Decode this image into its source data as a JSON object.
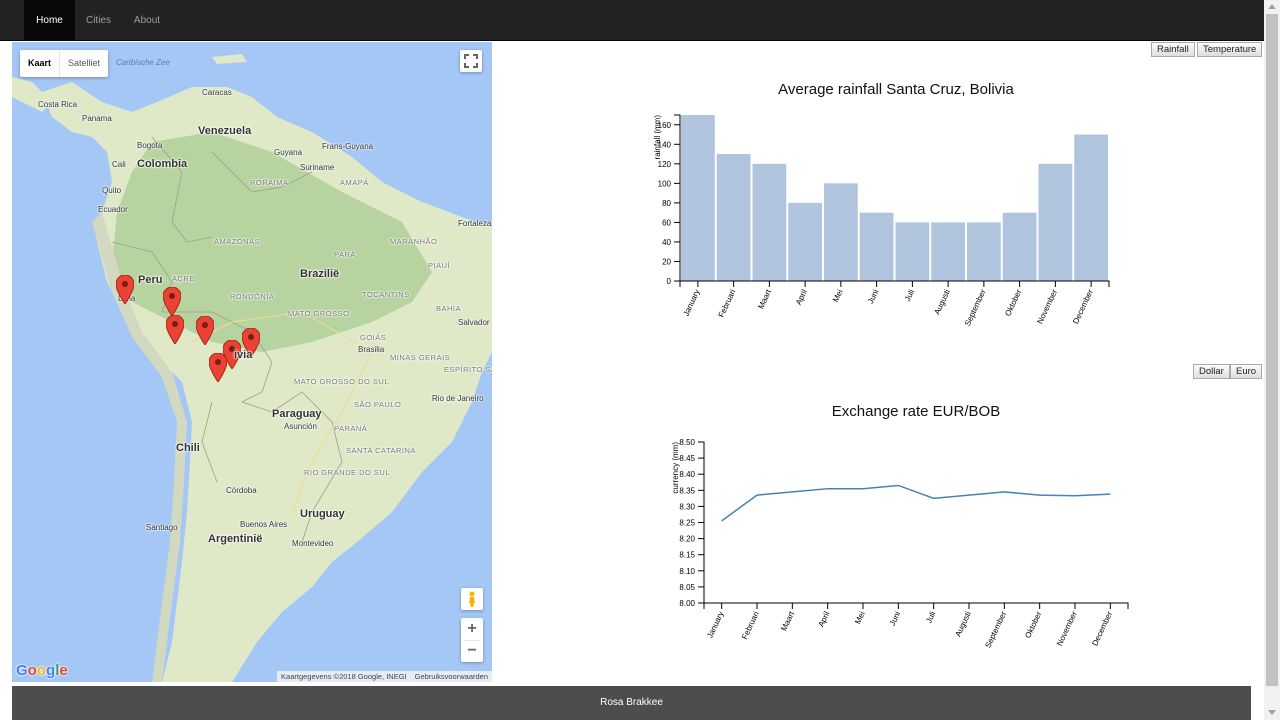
{
  "nav": {
    "items": [
      {
        "label": "Home",
        "active": true
      },
      {
        "label": "Cities",
        "active": false
      },
      {
        "label": "About",
        "active": false
      }
    ]
  },
  "map": {
    "type_buttons": [
      "Kaart",
      "Satelliet"
    ],
    "selected_type": "Kaart",
    "attribution": "Kaartgegevens ©2018 Google, INEGI",
    "terms_link": "Gebruiksvoorwaarden",
    "zoom_in": "+",
    "zoom_out": "−",
    "logo": "Google",
    "labels": {
      "caribbean": "Caribische Zee",
      "caracas": "Caracas",
      "costa_rica": "Costa Rica",
      "panama": "Panama",
      "venezuela": "Venezuela",
      "bogota": "Bogota",
      "colombia": "Colombia",
      "cali": "Cali",
      "guyana": "Guyana",
      "suriname": "Suriname",
      "frans_guyana": "Frans-Guyana",
      "roraima": "RORAIMA",
      "amapa": "AMAPÁ",
      "quito": "Quito",
      "ecuador": "Ecuador",
      "fortaleza": "Fortaleza",
      "amazonas": "AMAZONAS",
      "maranhao": "MARANHÃO",
      "para": "PARÁ",
      "piaui": "PIAUÍ",
      "peru": "Peru",
      "lima": "Lima",
      "acre": "ACRE",
      "brazilie": "Brazilië",
      "rondonia": "RONDÔNIA",
      "tocantins": "TOCANTINS",
      "bahia": "BAHIA",
      "mato_grosso": "MATO GROSSO",
      "salvador": "Salvador",
      "goias": "GOIÁS",
      "brasilia": "Brasilia",
      "minas_gerais": "MINAS GERAIS",
      "espirito_santo": "ESPÍRITO SANTO",
      "mato_grosso_do_sul": "MATO GROSSO DO SUL",
      "sao_paulo": "SÃO PAULO",
      "rio_de_janeiro": "Rio de Janeiro",
      "paraguay": "Paraguay",
      "asuncion": "Asunción",
      "parana": "PARANÁ",
      "chili": "Chili",
      "santa_catarina": "SANTA CATARINA",
      "rio_grande_do_sul": "RIO GRANDE DO SUL",
      "cordoba": "Córdoba",
      "uruguay": "Uruguay",
      "santiago": "Santiago",
      "buenos_aires": "Buenos Aires",
      "argentinie": "Argentinië",
      "montevideo": "Montevideo",
      "bolivia_partial": "ivia"
    },
    "markers_count": 7
  },
  "rainfall_panel": {
    "toggle_buttons": [
      "Rainfall",
      "Temperature"
    ],
    "title": "Average rainfall Santa Cruz, Bolivia"
  },
  "exchange_panel": {
    "toggle_buttons": [
      "Dollar",
      "Euro"
    ],
    "title": "Exchange rate EUR/BOB"
  },
  "chart_data": [
    {
      "type": "bar",
      "title": "Average rainfall Santa Cruz, Bolivia",
      "xlabel": "",
      "ylabel": "rainfall (mm)",
      "categories": [
        "January",
        "Februari",
        "Maart",
        "April",
        "Mei",
        "Juni",
        "Juli",
        "Augusti",
        "September",
        "Oktober",
        "November",
        "December"
      ],
      "values": [
        170,
        130,
        120,
        80,
        100,
        70,
        60,
        60,
        60,
        70,
        120,
        150
      ],
      "ylim": [
        0,
        170
      ],
      "yticks": [
        0,
        20,
        40,
        60,
        80,
        100,
        120,
        140,
        160
      ],
      "bar_color": "#b0c4de"
    },
    {
      "type": "line",
      "title": "Exchange rate EUR/BOB",
      "xlabel": "",
      "ylabel": "currency (mm)",
      "categories": [
        "January",
        "Februari",
        "Maart",
        "April",
        "Mei",
        "Juni",
        "Juli",
        "Augusti",
        "September",
        "Oktober",
        "November",
        "December"
      ],
      "values": [
        8.255,
        8.335,
        8.345,
        8.355,
        8.355,
        8.365,
        8.325,
        8.335,
        8.345,
        8.335,
        8.333,
        8.338
      ],
      "ylim": [
        8.0,
        8.5
      ],
      "yticks": [
        "8.00",
        "8.05",
        "8.10",
        "8.15",
        "8.20",
        "8.25",
        "8.30",
        "8.35",
        "8.40",
        "8.45",
        "8.50"
      ],
      "line_color": "#4682b4"
    }
  ],
  "footer": {
    "text": "Rosa Brakkee"
  }
}
